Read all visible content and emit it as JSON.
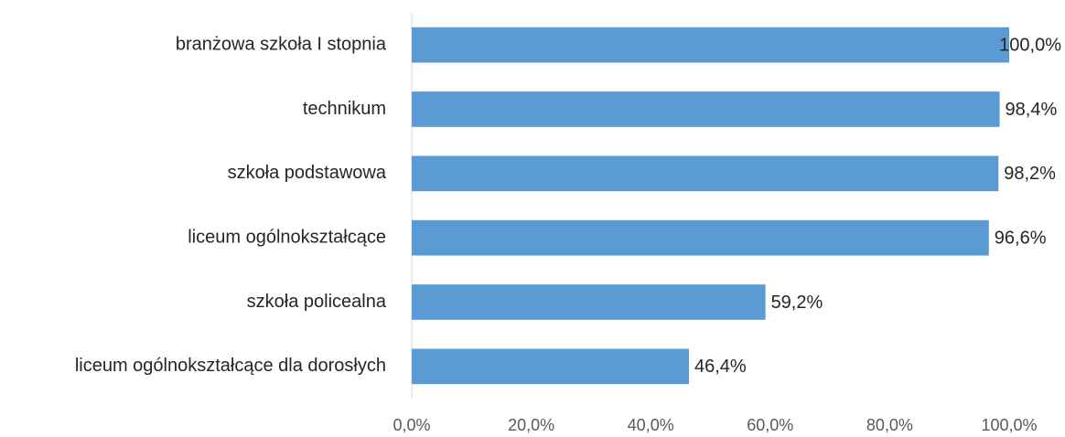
{
  "chart_data": {
    "type": "bar",
    "orientation": "horizontal",
    "categories": [
      "branżowa szkoła I stopnia",
      "technikum",
      "szkoła podstawowa",
      "liceum ogólnokształcące",
      "szkoła policealna",
      "liceum ogólnokształcące dla dorosłych"
    ],
    "values": [
      100.0,
      98.4,
      98.2,
      96.6,
      59.2,
      46.4
    ],
    "value_labels": [
      "100,0%",
      "98,4%",
      "98,2%",
      "96,6%",
      "59,2%",
      "46,4%"
    ],
    "color": "#5b9bd5",
    "xlim": [
      0,
      100
    ],
    "xticks": [
      {
        "value": 0,
        "label": "0,0%"
      },
      {
        "value": 20,
        "label": "20,0%"
      },
      {
        "value": 40,
        "label": "40,0%"
      },
      {
        "value": 60,
        "label": "60,0%"
      },
      {
        "value": 80,
        "label": "80,0%"
      },
      {
        "value": 100,
        "label": "100,0%"
      }
    ],
    "grid": false
  }
}
